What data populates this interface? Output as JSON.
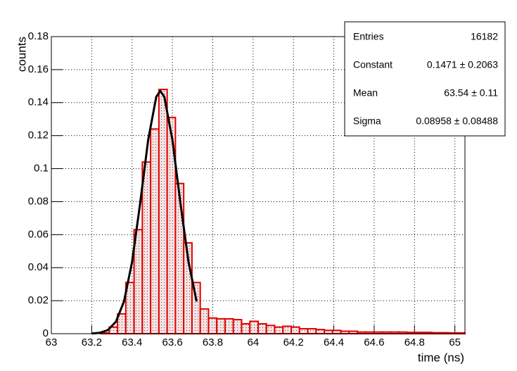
{
  "chart_data": {
    "type": "histogram",
    "xlabel": "time (ns)",
    "ylabel": "counts",
    "bins": [
      63,
      63.041,
      63.082,
      63.123,
      63.164,
      63.205,
      63.246,
      63.287,
      63.328,
      63.369,
      63.41,
      63.451,
      63.492,
      63.533,
      63.574,
      63.615,
      63.656,
      63.697,
      63.738,
      63.779,
      63.82,
      63.861,
      63.902,
      63.943,
      63.984,
      64.025,
      64.066,
      64.107,
      64.148,
      64.189,
      64.23,
      64.271,
      64.312,
      64.353,
      64.394,
      64.435,
      64.476,
      64.517,
      64.558,
      64.599,
      64.64,
      64.681,
      64.722,
      64.763,
      64.804,
      64.845,
      64.886,
      64.927,
      64.968,
      65.009,
      65.05
    ],
    "values": [
      0,
      0,
      0,
      0,
      0,
      0,
      0.0005,
      0.004,
      0.012,
      0.031,
      0.063,
      0.104,
      0.124,
      0.148,
      0.131,
      0.091,
      0.055,
      0.031,
      0.015,
      0.0095,
      0.009,
      0.009,
      0.0085,
      0.006,
      0.0075,
      0.006,
      0.005,
      0.004,
      0.0045,
      0.004,
      0.003,
      0.003,
      0.0025,
      0.002,
      0.002,
      0.0015,
      0.0015,
      0.001,
      0.001,
      0.001,
      0.001,
      0.001,
      0.001,
      0.0008,
      0.0008,
      0.0008,
      0.0006,
      0.0006,
      0.0005,
      0.0005
    ],
    "color": "#e00000",
    "fit": {
      "x": [
        63.2,
        63.24,
        63.28,
        63.32,
        63.36,
        63.4,
        63.44,
        63.48,
        63.52,
        63.54,
        63.56,
        63.6,
        63.64,
        63.68,
        63.72
      ],
      "values": [
        0.00011,
        0.00054,
        0.00218,
        0.00721,
        0.01953,
        0.04338,
        0.0789,
        0.1175,
        0.1435,
        0.1471,
        0.1435,
        0.1175,
        0.0789,
        0.0434,
        0.0195
      ],
      "color": "#000000"
    },
    "xlim": [
      63,
      65.05
    ],
    "ylim": [
      0,
      0.18
    ],
    "xticks": [
      63,
      63.2,
      63.4,
      63.6,
      63.8,
      64,
      64.2,
      64.4,
      64.6,
      64.8,
      65
    ],
    "yticks": [
      0,
      0.02,
      0.04,
      0.06,
      0.08,
      0.1,
      0.12,
      0.14,
      0.16,
      0.18
    ],
    "grid": true,
    "stats": [
      [
        "Entries",
        "16182"
      ],
      [
        "Constant",
        "0.1471 ± 0.2063"
      ],
      [
        "Mean",
        "63.54 ± 0.11"
      ],
      [
        "Sigma",
        "0.08958 ± 0.08488"
      ]
    ]
  }
}
